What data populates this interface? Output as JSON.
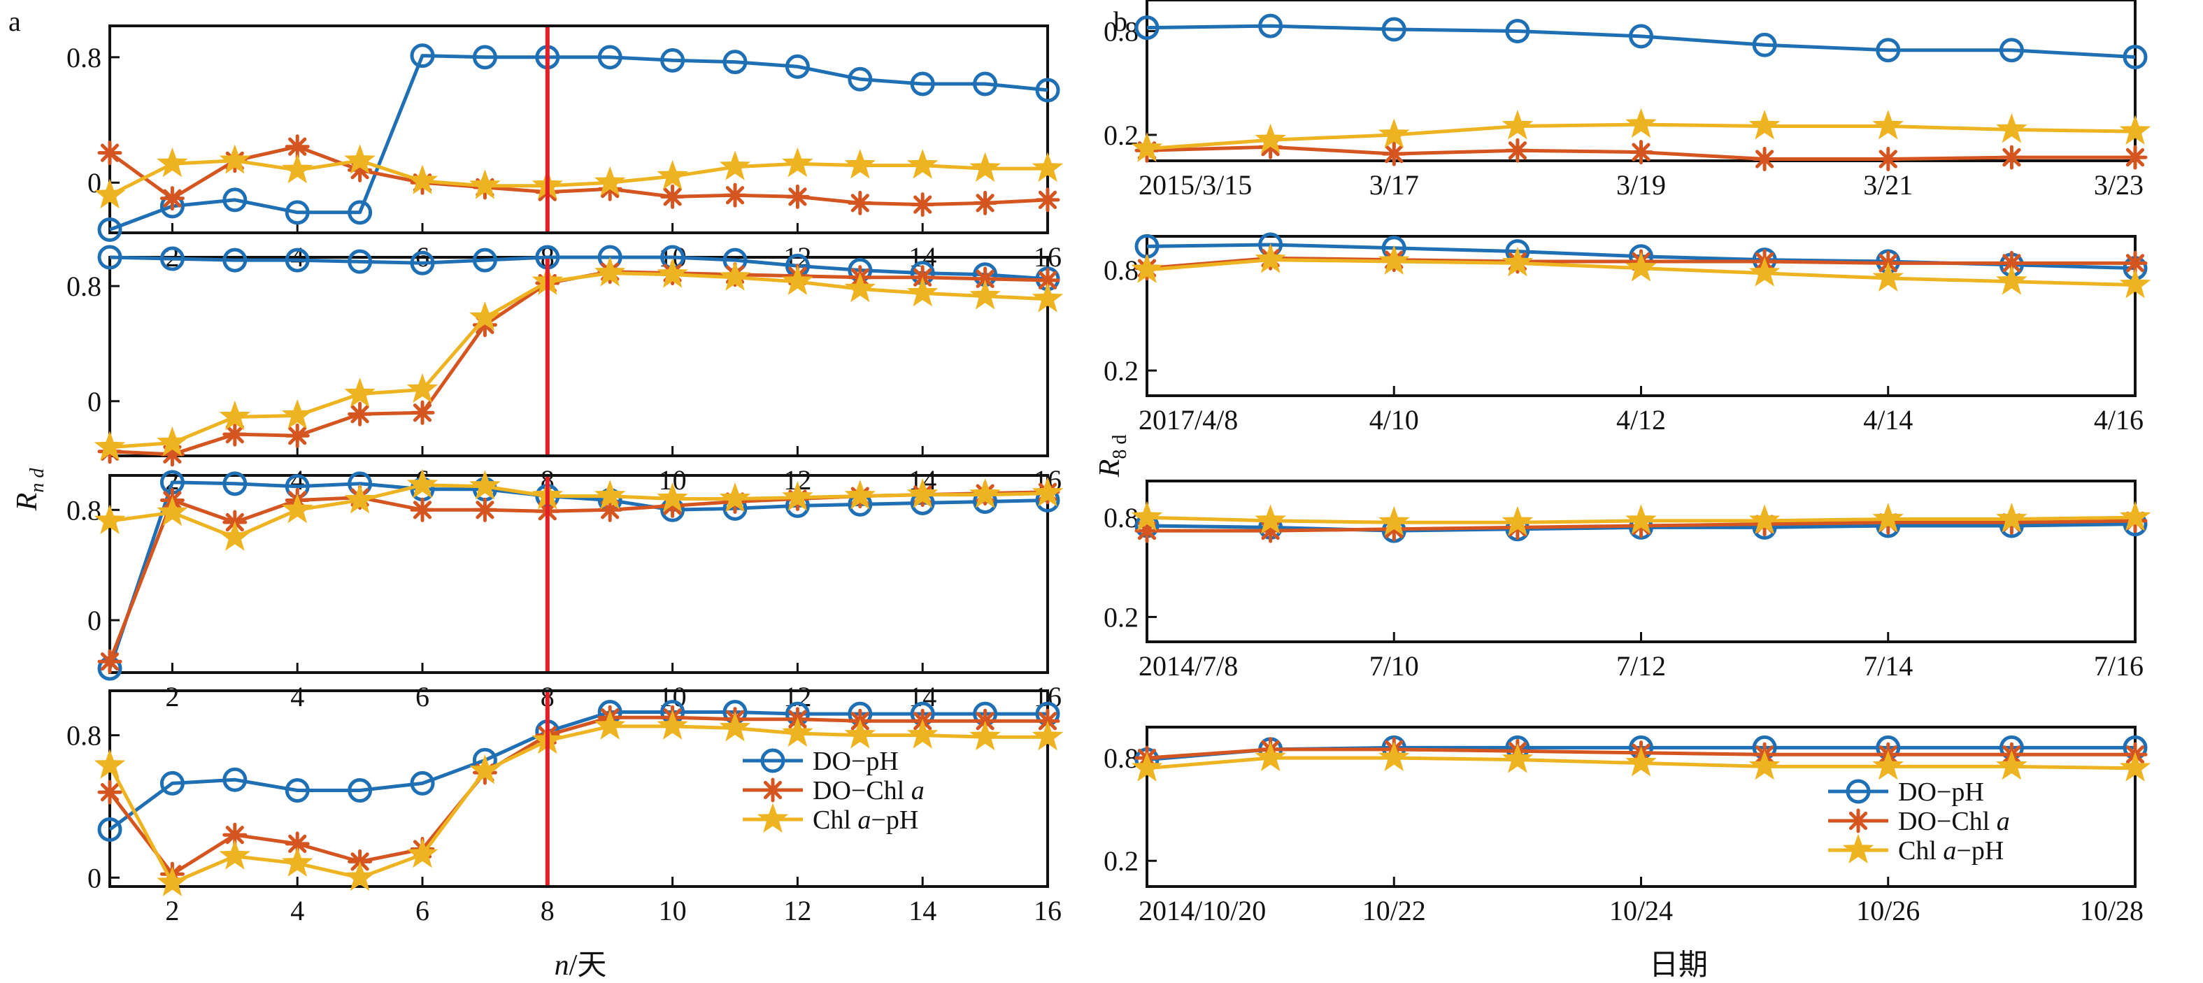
{
  "figure": {
    "panel_a_label": "a",
    "panel_b_label": "b",
    "ylabel_a_main": "R",
    "ylabel_a_sub": "n d",
    "ylabel_b_main": "R",
    "ylabel_b_sub": "8 d",
    "xlabel_a_main": "n",
    "xlabel_a_rest": "/天",
    "xlabel_b": "日期"
  },
  "legend": {
    "items": [
      {
        "text": "DO−pH",
        "italic": ""
      },
      {
        "text": "DO−Chl ",
        "italic": "a"
      },
      {
        "text": "Chl ",
        "italic": "a",
        "after": "−pH"
      }
    ]
  },
  "colors": {
    "DO-pH": "#1f6fb4",
    "DO-Chl a": "#d4551f",
    "Chl a-pH": "#eeb320",
    "vline": "#e21f26"
  },
  "chart_data": [
    {
      "type": "line",
      "panel": "a",
      "row": 1,
      "x": [
        1,
        2,
        3,
        4,
        5,
        6,
        7,
        8,
        9,
        10,
        11,
        12,
        13,
        14,
        15,
        16
      ],
      "xticks": [
        "2",
        "4",
        "6",
        "8",
        "10",
        "12",
        "14",
        "16"
      ],
      "yticks": [
        "0.8",
        "0"
      ],
      "ytick_values": [
        0.8,
        0
      ],
      "ylim": [
        -0.32,
        1.0
      ],
      "vline_x": 8,
      "series": [
        {
          "name": "DO-pH",
          "values": [
            -0.3,
            -0.15,
            -0.11,
            -0.19,
            -0.19,
            0.81,
            0.8,
            0.8,
            0.8,
            0.78,
            0.77,
            0.74,
            0.66,
            0.63,
            0.63,
            0.59
          ]
        },
        {
          "name": "DO-Chl a",
          "values": [
            0.19,
            -0.1,
            0.14,
            0.23,
            0.08,
            0.0,
            -0.03,
            -0.06,
            -0.04,
            -0.09,
            -0.08,
            -0.09,
            -0.13,
            -0.14,
            -0.13,
            -0.11
          ]
        },
        {
          "name": "Chl a-pH",
          "values": [
            -0.08,
            0.12,
            0.14,
            0.08,
            0.14,
            0.01,
            -0.02,
            -0.02,
            0.0,
            0.04,
            0.1,
            0.12,
            0.11,
            0.11,
            0.09,
            0.09
          ]
        }
      ]
    },
    {
      "type": "line",
      "panel": "a",
      "row": 2,
      "x": [
        1,
        2,
        3,
        4,
        5,
        6,
        7,
        8,
        9,
        10,
        11,
        12,
        13,
        14,
        15,
        16
      ],
      "xticks": [
        "2",
        "4",
        "6",
        "8",
        "10",
        "12",
        "14",
        "16"
      ],
      "yticks": [
        "0.8",
        "0"
      ],
      "ytick_values": [
        0.8,
        0
      ],
      "ylim": [
        -0.38,
        1.0
      ],
      "vline_x": 8,
      "series": [
        {
          "name": "DO-pH",
          "values": [
            1.0,
            0.99,
            0.98,
            0.98,
            0.97,
            0.96,
            0.98,
            1.0,
            1.0,
            1.0,
            0.98,
            0.94,
            0.91,
            0.89,
            0.88,
            0.85
          ]
        },
        {
          "name": "DO-Chl a",
          "values": [
            -0.35,
            -0.37,
            -0.23,
            -0.24,
            -0.09,
            -0.08,
            0.53,
            0.82,
            0.9,
            0.89,
            0.88,
            0.87,
            0.86,
            0.86,
            0.85,
            0.84
          ]
        },
        {
          "name": "Chl a-pH",
          "values": [
            -0.32,
            -0.29,
            -0.11,
            -0.1,
            0.05,
            0.08,
            0.58,
            0.83,
            0.89,
            0.88,
            0.86,
            0.83,
            0.78,
            0.75,
            0.73,
            0.71
          ]
        }
      ]
    },
    {
      "type": "line",
      "panel": "a",
      "row": 3,
      "x": [
        1,
        2,
        3,
        4,
        5,
        6,
        7,
        8,
        9,
        10,
        11,
        12,
        13,
        14,
        15,
        16
      ],
      "xticks": [
        "2",
        "4",
        "6",
        "8",
        "10",
        "12",
        "14",
        "16"
      ],
      "yticks": [
        "0.8",
        "0"
      ],
      "ytick_values": [
        0.8,
        0
      ],
      "ylim": [
        -0.38,
        1.05
      ],
      "vline_x": 8,
      "series": [
        {
          "name": "DO-pH",
          "values": [
            -0.35,
            1.0,
            0.99,
            0.97,
            0.99,
            0.95,
            0.95,
            0.9,
            0.87,
            0.8,
            0.81,
            0.83,
            0.84,
            0.85,
            0.86,
            0.87
          ]
        },
        {
          "name": "DO-Chl a",
          "values": [
            -0.3,
            0.87,
            0.71,
            0.87,
            0.89,
            0.8,
            0.8,
            0.79,
            0.8,
            0.83,
            0.86,
            0.88,
            0.9,
            0.91,
            0.92,
            0.93
          ]
        },
        {
          "name": "Chl a-pH",
          "values": [
            0.72,
            0.78,
            0.6,
            0.8,
            0.87,
            0.98,
            0.97,
            0.9,
            0.9,
            0.88,
            0.88,
            0.89,
            0.9,
            0.91,
            0.91,
            0.92
          ]
        }
      ]
    },
    {
      "type": "line",
      "panel": "a",
      "row": 4,
      "x": [
        1,
        2,
        3,
        4,
        5,
        6,
        7,
        8,
        9,
        10,
        11,
        12,
        13,
        14,
        15,
        16
      ],
      "xticks": [
        "2",
        "4",
        "6",
        "8",
        "10",
        "12",
        "14",
        "16"
      ],
      "yticks": [
        "0.8",
        "0"
      ],
      "ytick_values": [
        0.8,
        0
      ],
      "ylim": [
        -0.05,
        1.05
      ],
      "vline_x": 8,
      "series": [
        {
          "name": "DO-pH",
          "values": [
            0.27,
            0.53,
            0.55,
            0.49,
            0.49,
            0.53,
            0.66,
            0.82,
            0.93,
            0.93,
            0.93,
            0.92,
            0.92,
            0.92,
            0.92,
            0.92
          ]
        },
        {
          "name": "DO-Chl a",
          "values": [
            0.48,
            0.02,
            0.24,
            0.19,
            0.09,
            0.16,
            0.59,
            0.8,
            0.9,
            0.9,
            0.89,
            0.89,
            0.88,
            0.88,
            0.88,
            0.88
          ]
        },
        {
          "name": "Chl a-pH",
          "values": [
            0.63,
            -0.03,
            0.12,
            0.08,
            0.0,
            0.13,
            0.6,
            0.77,
            0.85,
            0.85,
            0.84,
            0.81,
            0.8,
            0.8,
            0.79,
            0.79
          ]
        }
      ]
    },
    {
      "type": "line",
      "panel": "b",
      "row": 1,
      "x": [
        "2015/3/15",
        "3/16",
        "3/17",
        "3/18",
        "3/19",
        "3/20",
        "3/21",
        "3/22",
        "3/23"
      ],
      "xticks": [
        "2015/3/15",
        "3/17",
        "3/19",
        "3/21",
        "3/23"
      ],
      "yticks": [
        "0.8",
        "0.2"
      ],
      "ytick_values": [
        0.8,
        0.2
      ],
      "ylim": [
        0.05,
        0.98
      ],
      "series": [
        {
          "name": "DO-pH",
          "values": [
            0.82,
            0.83,
            0.81,
            0.8,
            0.77,
            0.72,
            0.69,
            0.69,
            0.65
          ]
        },
        {
          "name": "DO-Chl a",
          "values": [
            0.11,
            0.13,
            0.09,
            0.11,
            0.1,
            0.06,
            0.06,
            0.07,
            0.07
          ]
        },
        {
          "name": "Chl a-pH",
          "values": [
            0.12,
            0.17,
            0.2,
            0.25,
            0.26,
            0.25,
            0.25,
            0.23,
            0.22
          ]
        }
      ]
    },
    {
      "type": "line",
      "panel": "b",
      "row": 2,
      "x": [
        "2017/4/8",
        "4/9",
        "4/10",
        "4/11",
        "4/12",
        "4/13",
        "4/14",
        "4/15",
        "4/16"
      ],
      "xticks": [
        "2017/4/8",
        "4/10",
        "4/12",
        "4/14",
        "4/16"
      ],
      "yticks": [
        "0.8",
        "0.2"
      ],
      "ytick_values": [
        0.8,
        0.2
      ],
      "ylim": [
        0.05,
        1.0
      ],
      "series": [
        {
          "name": "DO-pH",
          "values": [
            0.94,
            0.95,
            0.93,
            0.91,
            0.88,
            0.86,
            0.85,
            0.83,
            0.81
          ]
        },
        {
          "name": "DO-Chl a",
          "values": [
            0.81,
            0.87,
            0.86,
            0.85,
            0.85,
            0.85,
            0.84,
            0.84,
            0.84
          ]
        },
        {
          "name": "Chl a-pH",
          "values": [
            0.8,
            0.86,
            0.85,
            0.84,
            0.81,
            0.78,
            0.75,
            0.73,
            0.71
          ]
        }
      ]
    },
    {
      "type": "line",
      "panel": "b",
      "row": 3,
      "x": [
        "2014/7/8",
        "7/9",
        "7/10",
        "7/11",
        "7/12",
        "7/13",
        "7/14",
        "7/15",
        "7/16"
      ],
      "xticks": [
        "2014/7/8",
        "7/10",
        "7/12",
        "7/14",
        "7/16"
      ],
      "yticks": [
        "0.8",
        "0.2"
      ],
      "ytick_values": [
        0.8,
        0.2
      ],
      "ylim": [
        0.05,
        1.02
      ],
      "series": [
        {
          "name": "DO-pH",
          "values": [
            0.75,
            0.74,
            0.72,
            0.73,
            0.74,
            0.74,
            0.75,
            0.75,
            0.76
          ]
        },
        {
          "name": "DO-Chl a",
          "values": [
            0.72,
            0.72,
            0.73,
            0.74,
            0.75,
            0.76,
            0.77,
            0.77,
            0.78
          ]
        },
        {
          "name": "Chl a-pH",
          "values": [
            0.8,
            0.78,
            0.77,
            0.77,
            0.78,
            0.78,
            0.79,
            0.79,
            0.8
          ]
        }
      ]
    },
    {
      "type": "line",
      "panel": "b",
      "row": 4,
      "x": [
        "2014/10/20",
        "10/21",
        "10/22",
        "10/23",
        "10/24",
        "10/25",
        "10/26",
        "10/27",
        "10/28"
      ],
      "xticks": [
        "2014/10/20",
        "10/22",
        "10/24",
        "10/26",
        "10/28"
      ],
      "yticks": [
        "0.8",
        "0.2"
      ],
      "ytick_values": [
        0.8,
        0.2
      ],
      "ylim": [
        0.05,
        0.98
      ],
      "series": [
        {
          "name": "DO-pH",
          "values": [
            0.79,
            0.85,
            0.86,
            0.86,
            0.86,
            0.86,
            0.86,
            0.86,
            0.86
          ]
        },
        {
          "name": "DO-Chl a",
          "values": [
            0.8,
            0.85,
            0.85,
            0.84,
            0.83,
            0.82,
            0.82,
            0.82,
            0.82
          ]
        },
        {
          "name": "Chl a-pH",
          "values": [
            0.74,
            0.8,
            0.8,
            0.79,
            0.77,
            0.75,
            0.75,
            0.75,
            0.74
          ]
        }
      ]
    }
  ]
}
